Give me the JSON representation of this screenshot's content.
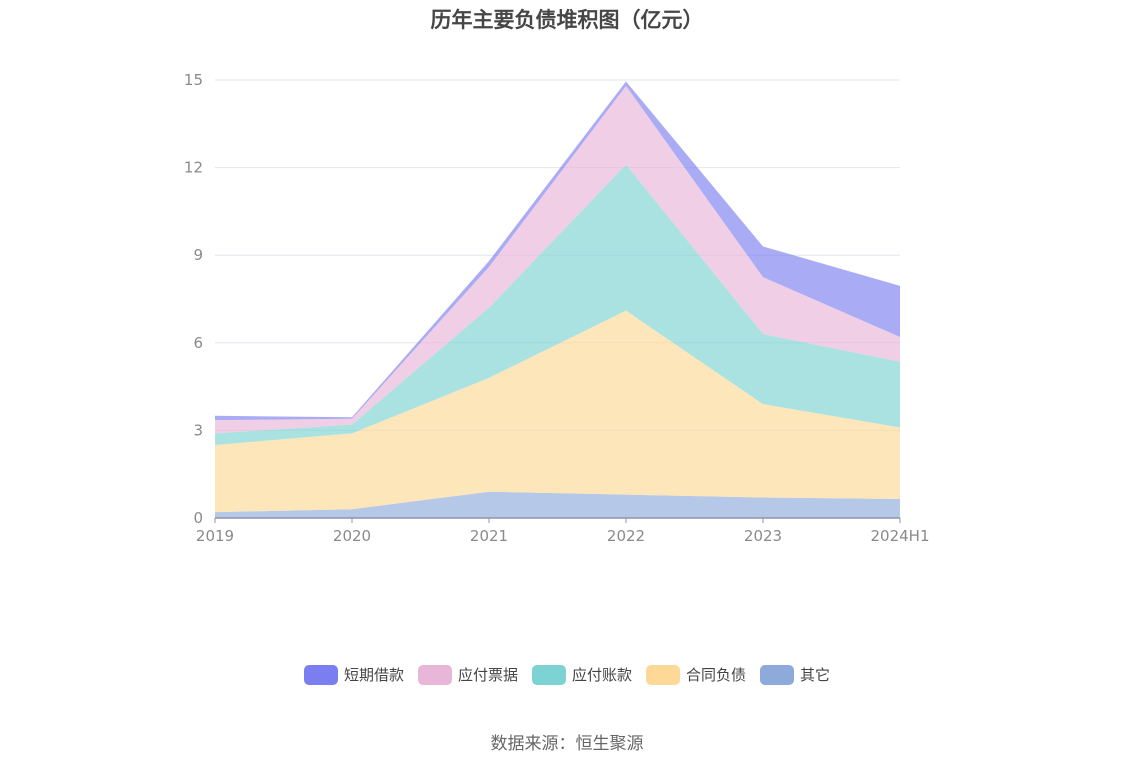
{
  "chart_data": {
    "type": "area",
    "stacked": true,
    "title": "历年主要负债堆积图（亿元）",
    "categories": [
      "2019",
      "2020",
      "2021",
      "2022",
      "2023",
      "2024H1"
    ],
    "yticks": [
      "0",
      "3",
      "6",
      "9",
      "12",
      "15"
    ],
    "ylim": [
      0,
      15
    ],
    "grid": true,
    "legend_position": "bottom",
    "series": [
      {
        "name": "其它",
        "color": "#8eaadb",
        "values": [
          0.2,
          0.3,
          0.9,
          0.8,
          0.7,
          0.65
        ]
      },
      {
        "name": "合同负债",
        "color": "#fdd896",
        "values": [
          2.3,
          2.6,
          3.9,
          6.3,
          3.2,
          2.45
        ]
      },
      {
        "name": "应付账款",
        "color": "#7dd3d3",
        "values": [
          0.4,
          0.3,
          2.4,
          5.0,
          2.4,
          2.25
        ]
      },
      {
        "name": "应付票据",
        "color": "#e8b6d8",
        "values": [
          0.45,
          0.2,
          1.4,
          2.7,
          1.95,
          0.85
        ]
      },
      {
        "name": "短期借款",
        "color": "#7b7ef0",
        "values": [
          0.15,
          0.05,
          0.2,
          0.15,
          1.05,
          1.75
        ]
      }
    ],
    "legend_order": [
      "短期借款",
      "应付票据",
      "应付账款",
      "合同负债",
      "其它"
    ]
  },
  "source_text": "数据来源：恒生聚源"
}
